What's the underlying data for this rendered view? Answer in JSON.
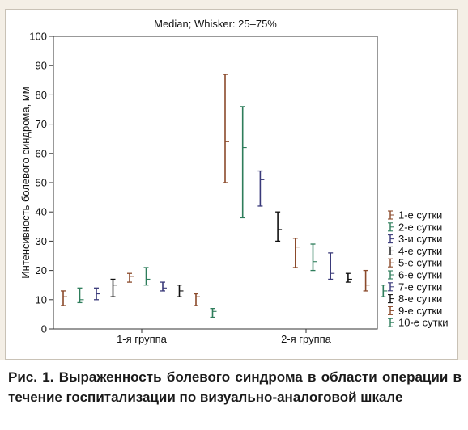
{
  "caption": "Рис. 1. Выраженность болевого синдрома в области операции в течение госпитализации по визуально-аналоговой шкале",
  "chart_data": {
    "type": "box",
    "title": "Median; Whisker: 25–75%",
    "xlabel": "",
    "ylabel": "Интенсивность болевого синдрома, мм",
    "ylim": [
      0,
      100
    ],
    "yticks": [
      0,
      10,
      20,
      30,
      40,
      50,
      60,
      70,
      80,
      90,
      100
    ],
    "categories": [
      "1-я группа",
      "2-я группа"
    ],
    "legend_position": "right",
    "series": [
      {
        "name": "1-е сутки",
        "color": "#8b4a2b",
        "data": [
          {
            "low": 8,
            "median": 11,
            "high": 13
          },
          {
            "low": 50,
            "median": 64,
            "high": 87
          }
        ]
      },
      {
        "name": "2-е сутки",
        "color": "#2e7d5b",
        "data": [
          {
            "low": 9,
            "median": 10,
            "high": 14
          },
          {
            "low": 38,
            "median": 62,
            "high": 76
          }
        ]
      },
      {
        "name": "3-и сутки",
        "color": "#3a3a7a",
        "data": [
          {
            "low": 10,
            "median": 12,
            "high": 14
          },
          {
            "low": 42,
            "median": 51,
            "high": 54
          }
        ]
      },
      {
        "name": "4-е сутки",
        "color": "#111111",
        "data": [
          {
            "low": 11,
            "median": 15,
            "high": 17
          },
          {
            "low": 30,
            "median": 34,
            "high": 40
          }
        ]
      },
      {
        "name": "5-е сутки",
        "color": "#8b4a2b",
        "data": [
          {
            "low": 16,
            "median": 18,
            "high": 19
          },
          {
            "low": 21,
            "median": 28,
            "high": 31
          }
        ]
      },
      {
        "name": "6-е сутки",
        "color": "#2e7d5b",
        "data": [
          {
            "low": 15,
            "median": 17,
            "high": 21
          },
          {
            "low": 20,
            "median": 23,
            "high": 29
          }
        ]
      },
      {
        "name": "7-е сутки",
        "color": "#3a3a7a",
        "data": [
          {
            "low": 13,
            "median": 14,
            "high": 16
          },
          {
            "low": 17,
            "median": 19,
            "high": 26
          }
        ]
      },
      {
        "name": "8-е сутки",
        "color": "#111111",
        "data": [
          {
            "low": 11,
            "median": 13,
            "high": 15
          },
          {
            "low": 16,
            "median": 17,
            "high": 19
          }
        ]
      },
      {
        "name": "9-е сутки",
        "color": "#8b4a2b",
        "data": [
          {
            "low": 8,
            "median": 11,
            "high": 12
          },
          {
            "low": 13,
            "median": 15,
            "high": 20
          }
        ]
      },
      {
        "name": "10-е сутки",
        "color": "#2e7d5b",
        "data": [
          {
            "low": 4,
            "median": 6,
            "high": 7
          },
          {
            "low": 11,
            "median": 13,
            "high": 15
          }
        ]
      }
    ]
  }
}
